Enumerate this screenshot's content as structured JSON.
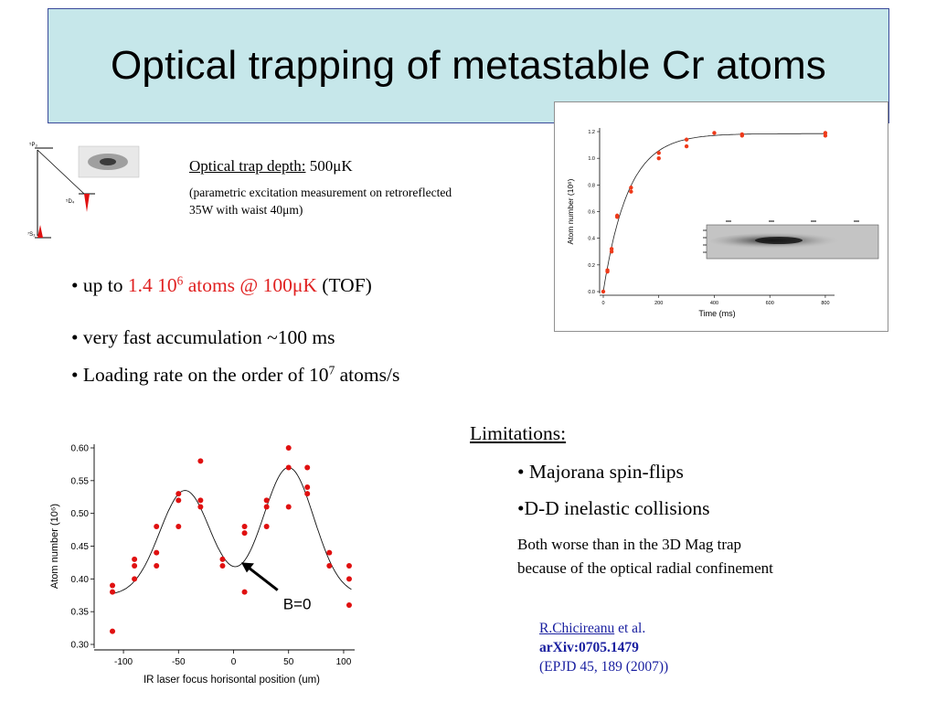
{
  "slide": {
    "title": "Optical trapping of metastable Cr atoms"
  },
  "level_diagram": {
    "label_top": "⁵P₃",
    "label_mid": "⁵D₄",
    "label_bottom": "⁷S₃"
  },
  "trap": {
    "depth_label": "Optical trap depth:",
    "depth_value": " 500μK",
    "note": "(parametric excitation measurement on retroreflected 35W with waist 40μm)"
  },
  "bullets": {
    "b1_prefix": "• up to ",
    "b1_red_a": "1.4 10",
    "b1_red_sup": "6",
    "b1_red_b": " atoms @ 100μK",
    "b1_suffix": " (TOF)",
    "b2": "• very fast accumulation ~100 ms",
    "b3_prefix": "• Loading rate on the order of 10",
    "b3_sup": "7",
    "b3_suffix": " atoms/s"
  },
  "limitations": {
    "heading": "Limitations:",
    "item1": "• Majorana spin-flips",
    "item2": "•D-D inelastic collisions",
    "note_line1": "Both worse than in the 3D Mag trap",
    "note_line2": "because of the optical radial confinement"
  },
  "reference": {
    "author": "R.Chicireanu",
    "etal": " et al.",
    "arxiv": "arXiv:0705.1479",
    "journal": "(EPJD 45, 189 (2007))"
  },
  "chart_data": [
    {
      "type": "scatter",
      "title": "",
      "xlabel": "Time (ms)",
      "ylabel": "Atom number (10⁶)",
      "xlim": [
        0,
        820
      ],
      "ylim": [
        0,
        1.2
      ],
      "xticks": [
        "0",
        "200",
        "400",
        "600",
        "800"
      ],
      "yticks": [
        "0.0",
        "0.2",
        "0.4",
        "0.6",
        "0.8",
        "1.0",
        "1.2"
      ],
      "points": [
        {
          "x": 0,
          "y": 0.0
        },
        {
          "x": 15,
          "y": 0.16
        },
        {
          "x": 15,
          "y": 0.15
        },
        {
          "x": 30,
          "y": 0.32
        },
        {
          "x": 30,
          "y": 0.3
        },
        {
          "x": 50,
          "y": 0.57
        },
        {
          "x": 50,
          "y": 0.56
        },
        {
          "x": 100,
          "y": 0.78
        },
        {
          "x": 100,
          "y": 0.75
        },
        {
          "x": 200,
          "y": 1.04
        },
        {
          "x": 200,
          "y": 1.0
        },
        {
          "x": 300,
          "y": 1.14
        },
        {
          "x": 300,
          "y": 1.09
        },
        {
          "x": 400,
          "y": 1.19
        },
        {
          "x": 500,
          "y": 1.18
        },
        {
          "x": 500,
          "y": 1.17
        },
        {
          "x": 800,
          "y": 1.19
        },
        {
          "x": 800,
          "y": 1.17
        }
      ],
      "fit": {
        "model": "saturating exponential",
        "amplitude": 1.185,
        "tau_ms": 90
      },
      "color": "#ee3a1a"
    },
    {
      "type": "scatter",
      "title": "",
      "xlabel": "IR laser focus horisontal position (um)",
      "ylabel": "Atom number (10⁶)",
      "xlim": [
        -115,
        110
      ],
      "ylim": [
        0.3,
        0.6
      ],
      "xticks": [
        "-100",
        "-50",
        "0",
        "50",
        "100"
      ],
      "yticks": [
        "0.30",
        "0.35",
        "0.40",
        "0.45",
        "0.50",
        "0.55",
        "0.60"
      ],
      "points": [
        {
          "x": -110,
          "y": 0.39
        },
        {
          "x": -110,
          "y": 0.38
        },
        {
          "x": -110,
          "y": 0.32
        },
        {
          "x": -90,
          "y": 0.43
        },
        {
          "x": -90,
          "y": 0.42
        },
        {
          "x": -90,
          "y": 0.4
        },
        {
          "x": -70,
          "y": 0.48
        },
        {
          "x": -70,
          "y": 0.44
        },
        {
          "x": -70,
          "y": 0.42
        },
        {
          "x": -50,
          "y": 0.53
        },
        {
          "x": -50,
          "y": 0.52
        },
        {
          "x": -50,
          "y": 0.48
        },
        {
          "x": -30,
          "y": 0.58
        },
        {
          "x": -30,
          "y": 0.52
        },
        {
          "x": -30,
          "y": 0.51
        },
        {
          "x": -10,
          "y": 0.43
        },
        {
          "x": -10,
          "y": 0.42
        },
        {
          "x": 10,
          "y": 0.48
        },
        {
          "x": 10,
          "y": 0.47
        },
        {
          "x": 10,
          "y": 0.38
        },
        {
          "x": 30,
          "y": 0.52
        },
        {
          "x": 30,
          "y": 0.51
        },
        {
          "x": 30,
          "y": 0.48
        },
        {
          "x": 50,
          "y": 0.6
        },
        {
          "x": 50,
          "y": 0.57
        },
        {
          "x": 50,
          "y": 0.51
        },
        {
          "x": 67,
          "y": 0.57
        },
        {
          "x": 67,
          "y": 0.54
        },
        {
          "x": 67,
          "y": 0.53
        },
        {
          "x": 87,
          "y": 0.44
        },
        {
          "x": 87,
          "y": 0.42
        },
        {
          "x": 105,
          "y": 0.42
        },
        {
          "x": 105,
          "y": 0.4
        },
        {
          "x": 105,
          "y": 0.36
        }
      ],
      "fit": {
        "model": "double gaussian",
        "base": 0.375,
        "peaks": [
          {
            "center": -44,
            "height": 0.16,
            "sigma": 23
          },
          {
            "center": 50,
            "height": 0.195,
            "sigma": 23
          }
        ]
      },
      "annotation": "B=0",
      "color": "#e01010"
    }
  ]
}
